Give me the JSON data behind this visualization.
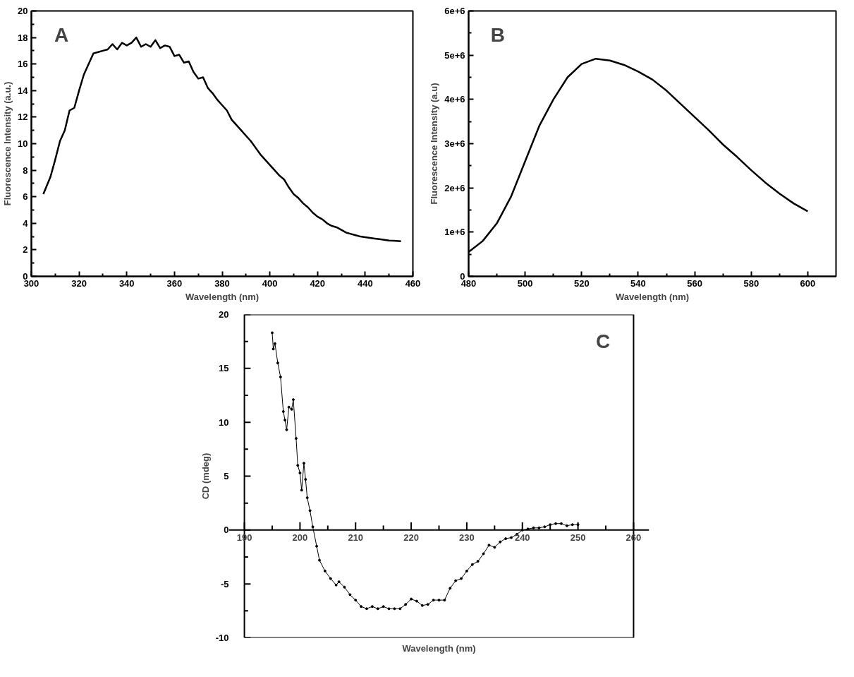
{
  "chart_data": [
    {
      "type": "line",
      "xlabel": "Wavelength (nm)",
      "ylabel": "Fluorescence Intensity (a.u.)",
      "annotations": [
        "A"
      ],
      "xlim": [
        300,
        460
      ],
      "ylim": [
        0,
        20
      ],
      "xticks": [
        300,
        320,
        340,
        360,
        380,
        400,
        420,
        440,
        460
      ],
      "yticks": [
        0,
        2,
        4,
        6,
        8,
        10,
        12,
        14,
        16,
        18,
        20
      ],
      "series": [
        {
          "color": "#000000",
          "x": [
            305,
            308,
            310,
            312,
            314,
            316,
            318,
            320,
            322,
            324,
            326,
            328,
            330,
            332,
            334,
            336,
            338,
            340,
            342,
            344,
            346,
            348,
            350,
            352,
            354,
            356,
            358,
            360,
            362,
            364,
            366,
            368,
            370,
            372,
            374,
            376,
            378,
            380,
            382,
            384,
            386,
            388,
            390,
            392,
            394,
            396,
            398,
            400,
            402,
            404,
            406,
            408,
            410,
            412,
            414,
            416,
            418,
            420,
            422,
            424,
            426,
            428,
            430,
            432,
            434,
            436,
            438,
            440,
            442,
            444,
            446,
            448,
            450,
            452,
            455
          ],
          "values": [
            6.2,
            7.5,
            8.8,
            10.2,
            11,
            12.5,
            12.7,
            14,
            15.2,
            16,
            16.8,
            16.9,
            17,
            17.1,
            17.5,
            17.1,
            17.6,
            17.4,
            17.6,
            18,
            17.3,
            17.5,
            17.3,
            17.8,
            17.2,
            17.4,
            17.3,
            16.6,
            16.7,
            16.1,
            16.2,
            15.4,
            14.9,
            15,
            14.2,
            13.8,
            13.3,
            12.9,
            12.5,
            11.8,
            11.4,
            11,
            10.6,
            10.2,
            9.7,
            9.2,
            8.8,
            8.4,
            8,
            7.6,
            7.3,
            6.7,
            6.2,
            5.9,
            5.5,
            5.2,
            4.8,
            4.5,
            4.3,
            4,
            3.8,
            3.7,
            3.5,
            3.3,
            3.2,
            3.1,
            3,
            2.95,
            2.9,
            2.85,
            2.8,
            2.75,
            2.7,
            2.68,
            2.65
          ]
        }
      ]
    },
    {
      "type": "line",
      "xlabel": "Wavelength (nm)",
      "ylabel": "Fluorescence Intensity (a.u)",
      "annotations": [
        "B"
      ],
      "xlim": [
        480,
        610
      ],
      "ylim": [
        0,
        6000000
      ],
      "xticks": [
        480,
        500,
        520,
        540,
        560,
        580,
        600
      ],
      "yticks": [
        {
          "value": 0,
          "label": "0"
        },
        {
          "value": 1000000,
          "label": "1e+6"
        },
        {
          "value": 2000000,
          "label": "2e+6"
        },
        {
          "value": 3000000,
          "label": "3e+6"
        },
        {
          "value": 4000000,
          "label": "4e+6"
        },
        {
          "value": 5000000,
          "label": "5e+6"
        },
        {
          "value": 6000000,
          "label": "6e+6"
        }
      ],
      "series": [
        {
          "color": "#000000",
          "x": [
            480,
            485,
            490,
            495,
            500,
            505,
            510,
            515,
            520,
            525,
            530,
            535,
            540,
            545,
            550,
            555,
            560,
            565,
            570,
            575,
            580,
            585,
            590,
            595,
            600
          ],
          "values": [
            550000,
            800000,
            1200000,
            1800000,
            2600000,
            3400000,
            4000000,
            4500000,
            4800000,
            4920000,
            4880000,
            4780000,
            4630000,
            4450000,
            4200000,
            3900000,
            3600000,
            3300000,
            2980000,
            2700000,
            2400000,
            2120000,
            1870000,
            1650000,
            1470000
          ]
        }
      ]
    },
    {
      "type": "line",
      "xlabel": "Wavelength (nm)",
      "ylabel": "CD (mdeg)",
      "annotations": [
        "C"
      ],
      "marker": "circle",
      "xlim": [
        190,
        260
      ],
      "ylim": [
        -10,
        20
      ],
      "xticks": [
        190,
        200,
        210,
        220,
        230,
        240,
        250,
        260
      ],
      "yticks": [
        -10,
        -5,
        0,
        5,
        10,
        15,
        20
      ],
      "series": [
        {
          "color": "#000000",
          "x": [
            195,
            195.2,
            195.5,
            196,
            196.5,
            197,
            197.3,
            197.6,
            198,
            198.5,
            198.8,
            199.3,
            199.6,
            200,
            200.3,
            200.7,
            201,
            201.3,
            201.8,
            202.3,
            203,
            203.5,
            204.5,
            205.5,
            206.5,
            207,
            208,
            209,
            210,
            211,
            212,
            213,
            214,
            215,
            216,
            217,
            218,
            219,
            220,
            221,
            222,
            223,
            224,
            225,
            226,
            227,
            228,
            229,
            230,
            231,
            232,
            233,
            234,
            235,
            236,
            237,
            238,
            239,
            240,
            241,
            242,
            243,
            244,
            245,
            246,
            247,
            248,
            249,
            250
          ],
          "values": [
            18.3,
            16.8,
            17.3,
            15.5,
            14.2,
            11,
            10.2,
            9.3,
            11.4,
            11.2,
            12.1,
            8.5,
            6,
            5.3,
            3.7,
            6.2,
            4.7,
            3,
            1.8,
            0.3,
            -1.5,
            -2.8,
            -3.8,
            -4.5,
            -5.1,
            -4.8,
            -5.3,
            -6,
            -6.5,
            -7.1,
            -7.3,
            -7.1,
            -7.3,
            -7.1,
            -7.3,
            -7.3,
            -7.3,
            -6.9,
            -6.4,
            -6.6,
            -7,
            -6.9,
            -6.5,
            -6.5,
            -6.5,
            -5.4,
            -4.7,
            -4.5,
            -3.8,
            -3.2,
            -2.9,
            -2.2,
            -1.4,
            -1.6,
            -1.1,
            -0.8,
            -0.7,
            -0.4,
            0,
            0.1,
            0.2,
            0.2,
            0.3,
            0.5,
            0.6,
            0.6,
            0.4,
            0.5,
            0.5
          ]
        }
      ]
    }
  ]
}
